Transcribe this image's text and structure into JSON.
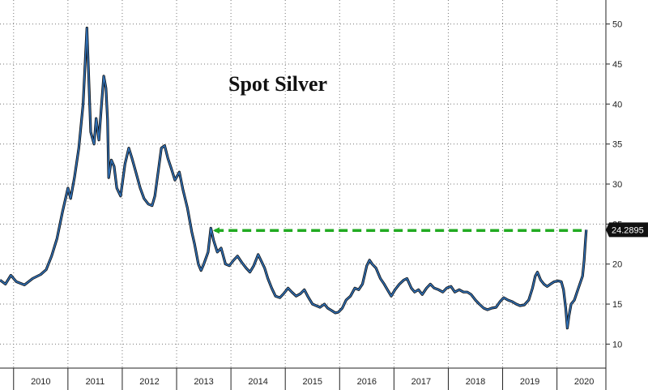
{
  "chart_data": {
    "type": "line",
    "title": "Spot Silver",
    "xlabel": "",
    "ylabel": "",
    "x_tick_labels": [
      "2010",
      "2011",
      "2012",
      "2013",
      "2014",
      "2015",
      "2016",
      "2017",
      "2018",
      "2019",
      "2020"
    ],
    "y_ticks": [
      10,
      15,
      20,
      25,
      30,
      35,
      40,
      45,
      50
    ],
    "ylim": [
      7,
      53
    ],
    "xlim": [
      2009.75,
      2020.9
    ],
    "grid": true,
    "last_value": "24.2895",
    "colors": {
      "line": "#2f6fb5",
      "line_shadow": "#111111",
      "arrow": "#22aa22",
      "callout_bg": "#111111"
    },
    "series": [
      {
        "points": [
          [
            2009.75,
            18.0
          ],
          [
            2009.85,
            17.5
          ],
          [
            2009.95,
            18.6
          ],
          [
            2010.05,
            17.8
          ],
          [
            2010.2,
            17.4
          ],
          [
            2010.35,
            18.2
          ],
          [
            2010.5,
            18.7
          ],
          [
            2010.6,
            19.3
          ],
          [
            2010.7,
            21.0
          ],
          [
            2010.8,
            23.2
          ],
          [
            2010.9,
            26.5
          ],
          [
            2011.0,
            29.5
          ],
          [
            2011.05,
            28.2
          ],
          [
            2011.12,
            30.8
          ],
          [
            2011.2,
            34.5
          ],
          [
            2011.28,
            40.0
          ],
          [
            2011.32,
            45.5
          ],
          [
            2011.35,
            49.5
          ],
          [
            2011.38,
            44.0
          ],
          [
            2011.42,
            36.5
          ],
          [
            2011.48,
            35.0
          ],
          [
            2011.52,
            38.2
          ],
          [
            2011.57,
            35.5
          ],
          [
            2011.62,
            40.0
          ],
          [
            2011.66,
            43.5
          ],
          [
            2011.7,
            42.0
          ],
          [
            2011.73,
            38.0
          ],
          [
            2011.75,
            30.8
          ],
          [
            2011.8,
            33.0
          ],
          [
            2011.85,
            32.2
          ],
          [
            2011.9,
            29.5
          ],
          [
            2011.97,
            28.5
          ],
          [
            2012.05,
            32.5
          ],
          [
            2012.12,
            34.5
          ],
          [
            2012.18,
            33.2
          ],
          [
            2012.25,
            31.5
          ],
          [
            2012.33,
            29.5
          ],
          [
            2012.4,
            28.2
          ],
          [
            2012.48,
            27.5
          ],
          [
            2012.55,
            27.3
          ],
          [
            2012.6,
            28.5
          ],
          [
            2012.67,
            32.0
          ],
          [
            2012.72,
            34.5
          ],
          [
            2012.78,
            34.8
          ],
          [
            2012.84,
            33.2
          ],
          [
            2012.9,
            32.0
          ],
          [
            2012.97,
            30.5
          ],
          [
            2013.05,
            31.5
          ],
          [
            2013.12,
            29.2
          ],
          [
            2013.2,
            27.0
          ],
          [
            2013.28,
            24.0
          ],
          [
            2013.33,
            22.5
          ],
          [
            2013.4,
            20.0
          ],
          [
            2013.45,
            19.2
          ],
          [
            2013.5,
            20.0
          ],
          [
            2013.58,
            21.5
          ],
          [
            2013.63,
            24.5
          ],
          [
            2013.68,
            23.0
          ],
          [
            2013.75,
            21.5
          ],
          [
            2013.82,
            22.0
          ],
          [
            2013.9,
            20.0
          ],
          [
            2013.97,
            19.8
          ],
          [
            2014.05,
            20.5
          ],
          [
            2014.12,
            21.0
          ],
          [
            2014.2,
            20.2
          ],
          [
            2014.28,
            19.5
          ],
          [
            2014.35,
            19.0
          ],
          [
            2014.42,
            19.8
          ],
          [
            2014.5,
            21.2
          ],
          [
            2014.55,
            20.5
          ],
          [
            2014.62,
            19.5
          ],
          [
            2014.68,
            18.2
          ],
          [
            2014.75,
            17.0
          ],
          [
            2014.82,
            16.0
          ],
          [
            2014.9,
            15.8
          ],
          [
            2014.97,
            16.3
          ],
          [
            2015.05,
            17.0
          ],
          [
            2015.12,
            16.5
          ],
          [
            2015.2,
            16.0
          ],
          [
            2015.28,
            16.3
          ],
          [
            2015.35,
            16.8
          ],
          [
            2015.42,
            15.9
          ],
          [
            2015.5,
            15.0
          ],
          [
            2015.57,
            14.8
          ],
          [
            2015.64,
            14.6
          ],
          [
            2015.72,
            15.0
          ],
          [
            2015.78,
            14.5
          ],
          [
            2015.85,
            14.2
          ],
          [
            2015.92,
            13.9
          ],
          [
            2015.98,
            14.0
          ],
          [
            2016.05,
            14.5
          ],
          [
            2016.12,
            15.5
          ],
          [
            2016.2,
            16.0
          ],
          [
            2016.28,
            17.0
          ],
          [
            2016.35,
            16.8
          ],
          [
            2016.42,
            17.5
          ],
          [
            2016.5,
            19.8
          ],
          [
            2016.55,
            20.5
          ],
          [
            2016.6,
            20.0
          ],
          [
            2016.67,
            19.5
          ],
          [
            2016.75,
            18.2
          ],
          [
            2016.82,
            17.5
          ],
          [
            2016.88,
            16.8
          ],
          [
            2016.95,
            16.0
          ],
          [
            2017.02,
            16.8
          ],
          [
            2017.1,
            17.5
          ],
          [
            2017.18,
            18.0
          ],
          [
            2017.24,
            18.2
          ],
          [
            2017.32,
            17.0
          ],
          [
            2017.38,
            16.5
          ],
          [
            2017.45,
            16.8
          ],
          [
            2017.52,
            16.2
          ],
          [
            2017.6,
            17.0
          ],
          [
            2017.67,
            17.5
          ],
          [
            2017.74,
            17.0
          ],
          [
            2017.82,
            16.8
          ],
          [
            2017.9,
            16.5
          ],
          [
            2017.97,
            17.0
          ],
          [
            2018.05,
            17.2
          ],
          [
            2018.12,
            16.5
          ],
          [
            2018.2,
            16.8
          ],
          [
            2018.28,
            16.5
          ],
          [
            2018.35,
            16.5
          ],
          [
            2018.42,
            16.2
          ],
          [
            2018.5,
            15.5
          ],
          [
            2018.57,
            15.0
          ],
          [
            2018.65,
            14.5
          ],
          [
            2018.72,
            14.3
          ],
          [
            2018.8,
            14.5
          ],
          [
            2018.88,
            14.6
          ],
          [
            2018.95,
            15.3
          ],
          [
            2019.02,
            15.8
          ],
          [
            2019.1,
            15.5
          ],
          [
            2019.18,
            15.3
          ],
          [
            2019.25,
            15.0
          ],
          [
            2019.32,
            14.8
          ],
          [
            2019.4,
            14.9
          ],
          [
            2019.48,
            15.5
          ],
          [
            2019.55,
            17.0
          ],
          [
            2019.6,
            18.5
          ],
          [
            2019.64,
            19.0
          ],
          [
            2019.7,
            18.0
          ],
          [
            2019.76,
            17.5
          ],
          [
            2019.82,
            17.2
          ],
          [
            2019.88,
            17.5
          ],
          [
            2019.95,
            17.8
          ],
          [
            2020.02,
            17.9
          ],
          [
            2020.08,
            17.8
          ],
          [
            2020.12,
            16.8
          ],
          [
            2020.16,
            14.5
          ],
          [
            2020.19,
            12.0
          ],
          [
            2020.22,
            13.5
          ],
          [
            2020.26,
            15.0
          ],
          [
            2020.32,
            15.5
          ],
          [
            2020.37,
            16.5
          ],
          [
            2020.42,
            17.5
          ],
          [
            2020.47,
            18.5
          ],
          [
            2020.5,
            20.5
          ],
          [
            2020.52,
            22.5
          ],
          [
            2020.54,
            24.2895
          ]
        ]
      }
    ],
    "annotations": [
      {
        "type": "dashed-arrow",
        "direction": "left",
        "y": 24.2,
        "from_x": 2020.5,
        "to_x": 2013.58
      }
    ]
  }
}
